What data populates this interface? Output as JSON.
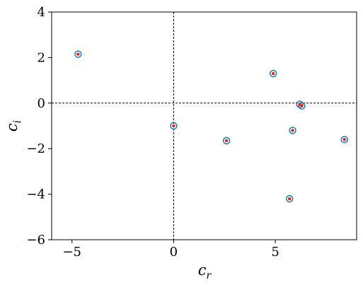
{
  "chart_data": {
    "type": "scatter",
    "xlabel": "c_r",
    "ylabel": "c_i",
    "xlim": [
      -6.0,
      9.0
    ],
    "ylim": [
      -6,
      4
    ],
    "x_ticks": [
      -5,
      0,
      5
    ],
    "y_ticks": [
      -6,
      -4,
      -2,
      0,
      2,
      4
    ],
    "x_tick_labels": [
      "−5",
      "0",
      "5"
    ],
    "y_tick_labels": [
      "−6",
      "−4",
      "−2",
      "0",
      "2",
      "4"
    ],
    "reference_lines": {
      "x": 0,
      "y": 0,
      "style": "dashed"
    },
    "grid": false,
    "series": [
      {
        "marker": "open-circle",
        "color": "#1f77b4",
        "points": [
          {
            "x": -4.7,
            "y": 2.15
          },
          {
            "x": 0.0,
            "y": -1.0
          },
          {
            "x": 2.6,
            "y": -1.65
          },
          {
            "x": 4.9,
            "y": 1.3
          },
          {
            "x": 5.85,
            "y": -1.2
          },
          {
            "x": 5.7,
            "y": -4.2
          },
          {
            "x": 6.2,
            "y": -0.05
          },
          {
            "x": 6.3,
            "y": -0.12
          },
          {
            "x": 8.4,
            "y": -1.6
          }
        ]
      },
      {
        "marker": "dot",
        "color": "#d62728",
        "points": [
          {
            "x": -4.7,
            "y": 2.15
          },
          {
            "x": 0.0,
            "y": -1.0
          },
          {
            "x": 2.6,
            "y": -1.65
          },
          {
            "x": 4.9,
            "y": 1.3
          },
          {
            "x": 5.85,
            "y": -1.2
          },
          {
            "x": 5.7,
            "y": -4.2
          },
          {
            "x": 6.2,
            "y": -0.05
          },
          {
            "x": 6.3,
            "y": -0.12
          },
          {
            "x": 8.4,
            "y": -1.6
          }
        ]
      }
    ]
  }
}
